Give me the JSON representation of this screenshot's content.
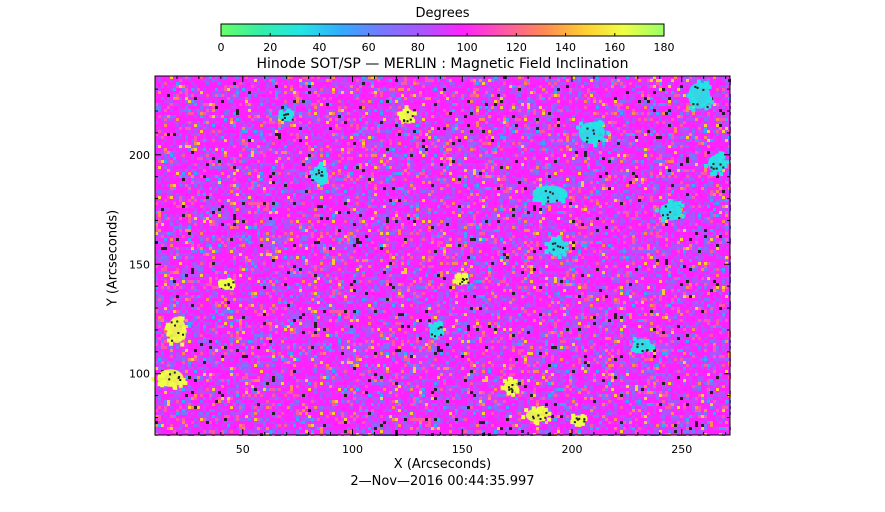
{
  "colorbar": {
    "title": "Degrees",
    "ticks": [
      0,
      20,
      40,
      60,
      80,
      100,
      120,
      140,
      160,
      180
    ],
    "range": [
      0,
      180
    ],
    "stops": [
      "#66ff66",
      "#33eeaa",
      "#22e5e5",
      "#33aaff",
      "#7777ff",
      "#aa55ff",
      "#ff22ff",
      "#ff55aa",
      "#ff8855",
      "#ffcc33",
      "#eeff44",
      "#99ff66"
    ]
  },
  "chart_data": {
    "type": "heatmap",
    "title": "Hinode SOT/SP — MERLIN : Magnetic Field Inclination",
    "xlabel": "X (Arcseconds)",
    "ylabel": "Y (Arcseconds)",
    "xlim": [
      10,
      272
    ],
    "ylim": [
      72,
      236
    ],
    "xticks": [
      50,
      100,
      150,
      200,
      250
    ],
    "yticks": [
      100,
      150,
      200
    ],
    "value_range": [
      0,
      180
    ],
    "value_unit": "Degrees",
    "dominant_value": 90,
    "features": [
      {
        "kind": "low-inclination patch",
        "value": 30,
        "x": 190,
        "y": 182,
        "rx": 8,
        "ry": 4
      },
      {
        "kind": "low-inclination patch",
        "value": 30,
        "x": 209,
        "y": 210,
        "rx": 6,
        "ry": 5
      },
      {
        "kind": "low-inclination patch",
        "value": 30,
        "x": 258,
        "y": 227,
        "rx": 5,
        "ry": 6
      },
      {
        "kind": "low-inclination patch",
        "value": 35,
        "x": 245,
        "y": 174,
        "rx": 5,
        "ry": 4
      },
      {
        "kind": "low-inclination patch",
        "value": 35,
        "x": 266,
        "y": 196,
        "rx": 4,
        "ry": 4
      },
      {
        "kind": "low-inclination patch",
        "value": 35,
        "x": 193,
        "y": 158,
        "rx": 4,
        "ry": 4
      },
      {
        "kind": "low-inclination patch",
        "value": 35,
        "x": 85,
        "y": 191,
        "rx": 3,
        "ry": 4
      },
      {
        "kind": "low-inclination patch",
        "value": 35,
        "x": 138,
        "y": 120,
        "rx": 3,
        "ry": 3
      },
      {
        "kind": "low-inclination patch",
        "value": 35,
        "x": 232,
        "y": 113,
        "rx": 4,
        "ry": 3
      },
      {
        "kind": "low-inclination patch",
        "value": 35,
        "x": 70,
        "y": 218,
        "rx": 3,
        "ry": 2
      },
      {
        "kind": "high-inclination patch",
        "value": 160,
        "x": 20,
        "y": 120,
        "rx": 4,
        "ry": 6
      },
      {
        "kind": "high-inclination patch",
        "value": 160,
        "x": 17,
        "y": 98,
        "rx": 6,
        "ry": 4
      },
      {
        "kind": "high-inclination patch",
        "value": 160,
        "x": 184,
        "y": 81,
        "rx": 5,
        "ry": 3
      },
      {
        "kind": "high-inclination patch",
        "value": 160,
        "x": 172,
        "y": 94,
        "rx": 3,
        "ry": 3
      },
      {
        "kind": "high-inclination patch",
        "value": 160,
        "x": 125,
        "y": 218,
        "rx": 3,
        "ry": 3
      },
      {
        "kind": "high-inclination patch",
        "value": 160,
        "x": 203,
        "y": 79,
        "rx": 3,
        "ry": 2
      },
      {
        "kind": "high-inclination patch",
        "value": 160,
        "x": 43,
        "y": 141,
        "rx": 3,
        "ry": 2
      },
      {
        "kind": "high-inclination patch",
        "value": 160,
        "x": 150,
        "y": 143,
        "rx": 3,
        "ry": 2
      }
    ]
  },
  "timestamp": "2—Nov—2016 00:44:35.997"
}
